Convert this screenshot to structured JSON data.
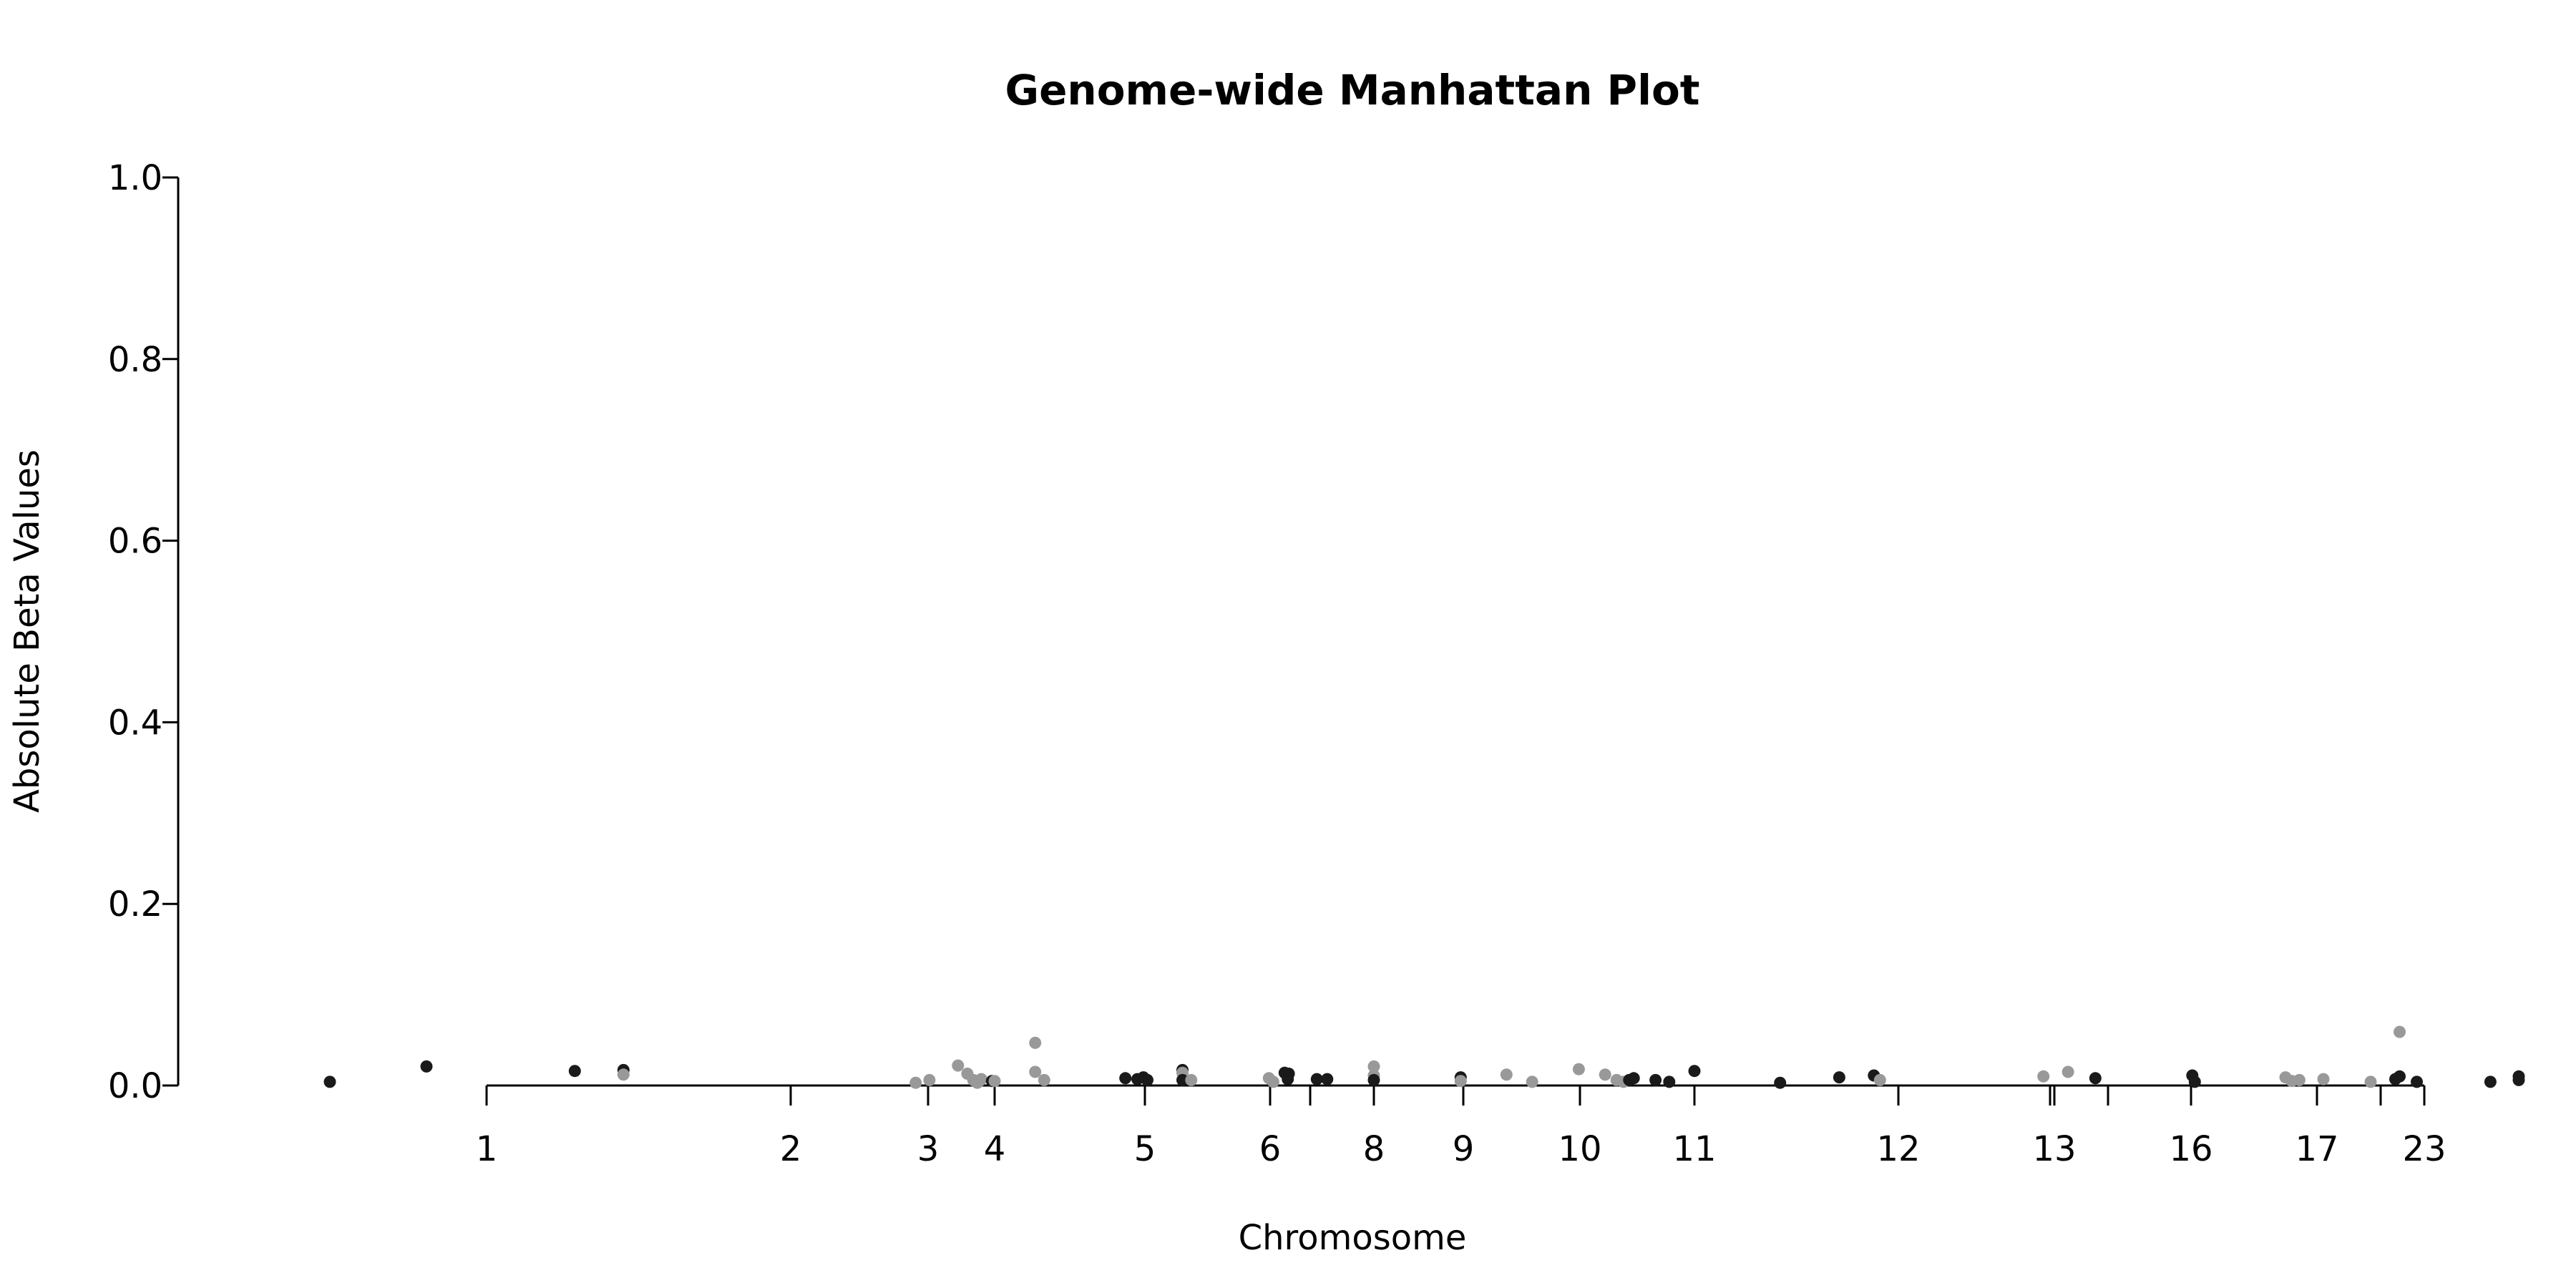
{
  "chart_data": {
    "type": "scatter",
    "title": "Genome-wide Manhattan Plot",
    "xlabel": "Chromosome",
    "ylabel": "Absolute Beta Values",
    "ylim": [
      0,
      1.0
    ],
    "yticks": [
      "0.0",
      "0.2",
      "0.4",
      "0.6",
      "0.8",
      "1.0"
    ],
    "xticks": [
      "1",
      "2",
      "3",
      "4",
      "5",
      "6",
      "8",
      "9",
      "10",
      "11",
      "12",
      "13",
      "16",
      "17",
      "23"
    ],
    "colors": {
      "dark": "#1a1a1a",
      "gray": "#999999"
    },
    "points": [
      {
        "x": -0.73,
        "y": 0.004,
        "c": "dark"
      },
      {
        "x": -0.28,
        "y": 0.021,
        "c": "dark"
      },
      {
        "x": 0.29,
        "y": 0.016,
        "c": "dark"
      },
      {
        "x": 0.45,
        "y": 0.017,
        "c": "dark"
      },
      {
        "x": 0.45,
        "y": 0.012,
        "c": "gray"
      },
      {
        "x": 1.91,
        "y": 0.003,
        "c": "gray"
      },
      {
        "x": 2.02,
        "y": 0.006,
        "c": "gray"
      },
      {
        "x": 2.45,
        "y": 0.022,
        "c": "gray"
      },
      {
        "x": 2.59,
        "y": 0.013,
        "c": "gray"
      },
      {
        "x": 2.68,
        "y": 0.006,
        "c": "gray"
      },
      {
        "x": 2.74,
        "y": 0.003,
        "c": "gray"
      },
      {
        "x": 2.77,
        "y": 0.005,
        "c": "gray"
      },
      {
        "x": 2.8,
        "y": 0.007,
        "c": "gray"
      },
      {
        "x": 2.96,
        "y": 0.005,
        "c": "dark"
      },
      {
        "x": 3.0,
        "y": 0.005,
        "c": "gray"
      },
      {
        "x": 3.27,
        "y": 0.047,
        "c": "gray"
      },
      {
        "x": 3.27,
        "y": 0.015,
        "c": "gray"
      },
      {
        "x": 3.33,
        "y": 0.006,
        "c": "gray"
      },
      {
        "x": 3.87,
        "y": 0.008,
        "c": "dark"
      },
      {
        "x": 3.95,
        "y": 0.007,
        "c": "dark"
      },
      {
        "x": 3.99,
        "y": 0.009,
        "c": "dark"
      },
      {
        "x": 4.02,
        "y": 0.006,
        "c": "dark"
      },
      {
        "x": 4.3,
        "y": 0.017,
        "c": "dark"
      },
      {
        "x": 4.3,
        "y": 0.014,
        "c": "gray"
      },
      {
        "x": 4.3,
        "y": 0.006,
        "c": "dark"
      },
      {
        "x": 4.37,
        "y": 0.006,
        "c": "gray"
      },
      {
        "x": 4.99,
        "y": 0.008,
        "c": "gray"
      },
      {
        "x": 5.03,
        "y": 0.004,
        "c": "gray"
      },
      {
        "x": 5.14,
        "y": 0.014,
        "c": "dark"
      },
      {
        "x": 5.18,
        "y": 0.013,
        "c": "dark"
      },
      {
        "x": 5.17,
        "y": 0.007,
        "c": "dark"
      },
      {
        "x": 5.45,
        "y": 0.007,
        "c": "dark"
      },
      {
        "x": 5.55,
        "y": 0.007,
        "c": "dark"
      },
      {
        "x": 6.0,
        "y": 0.021,
        "c": "gray"
      },
      {
        "x": 6.0,
        "y": 0.011,
        "c": "gray"
      },
      {
        "x": 6.0,
        "y": 0.006,
        "c": "dark"
      },
      {
        "x": 6.97,
        "y": 0.009,
        "c": "dark"
      },
      {
        "x": 6.97,
        "y": 0.005,
        "c": "gray"
      },
      {
        "x": 7.37,
        "y": 0.012,
        "c": "gray"
      },
      {
        "x": 7.59,
        "y": 0.004,
        "c": "gray"
      },
      {
        "x": 7.99,
        "y": 0.018,
        "c": "gray"
      },
      {
        "x": 8.22,
        "y": 0.012,
        "c": "gray"
      },
      {
        "x": 8.32,
        "y": 0.006,
        "c": "gray"
      },
      {
        "x": 8.38,
        "y": 0.004,
        "c": "gray"
      },
      {
        "x": 8.43,
        "y": 0.006,
        "c": "dark"
      },
      {
        "x": 8.47,
        "y": 0.008,
        "c": "dark"
      },
      {
        "x": 8.66,
        "y": 0.006,
        "c": "dark"
      },
      {
        "x": 8.78,
        "y": 0.004,
        "c": "dark"
      },
      {
        "x": 9.0,
        "y": 0.016,
        "c": "dark"
      },
      {
        "x": 9.42,
        "y": 0.003,
        "c": "dark"
      },
      {
        "x": 9.71,
        "y": 0.009,
        "c": "dark"
      },
      {
        "x": 9.88,
        "y": 0.011,
        "c": "dark"
      },
      {
        "x": 9.91,
        "y": 0.006,
        "c": "gray"
      },
      {
        "x": 10.93,
        "y": 0.01,
        "c": "gray"
      },
      {
        "x": 11.1,
        "y": 0.015,
        "c": "gray"
      },
      {
        "x": 11.3,
        "y": 0.008,
        "c": "dark"
      },
      {
        "x": 12.01,
        "y": 0.011,
        "c": "dark"
      },
      {
        "x": 12.03,
        "y": 0.004,
        "c": "dark"
      },
      {
        "x": 12.75,
        "y": 0.009,
        "c": "gray"
      },
      {
        "x": 12.8,
        "y": 0.005,
        "c": "gray"
      },
      {
        "x": 12.86,
        "y": 0.006,
        "c": "gray"
      },
      {
        "x": 13.06,
        "y": 0.007,
        "c": "gray"
      },
      {
        "x": 13.5,
        "y": 0.004,
        "c": "gray"
      },
      {
        "x": 13.77,
        "y": 0.059,
        "c": "gray"
      },
      {
        "x": 13.77,
        "y": 0.01,
        "c": "dark"
      },
      {
        "x": 13.73,
        "y": 0.007,
        "c": "dark"
      },
      {
        "x": 13.93,
        "y": 0.004,
        "c": "dark"
      },
      {
        "x": 14.42,
        "y": 0.004,
        "c": "dark"
      },
      {
        "x": 14.6,
        "y": 0.01,
        "c": "dark"
      },
      {
        "x": 14.6,
        "y": 0.006,
        "c": "dark"
      },
      {
        "x": 15.3,
        "y": 0.004,
        "c": "dark"
      }
    ]
  }
}
